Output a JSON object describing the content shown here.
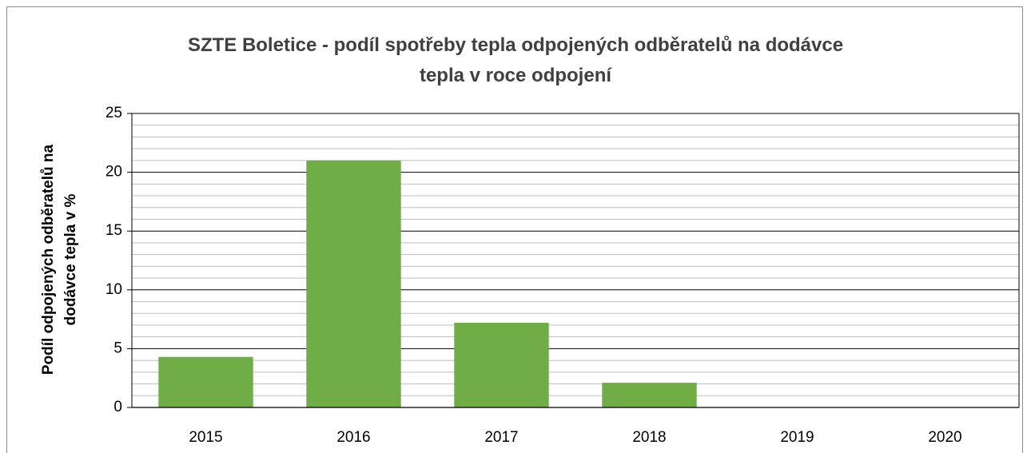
{
  "chart_data": {
    "type": "bar",
    "title": "SZTE Boletice - podíl spotřeby tepla odpojených odběratelů na dodávce\ntepla v roce odpojení",
    "y_label": "Podíl odpojených odběratelů na\ndodávce tepla v %",
    "categories": [
      "2015",
      "2016",
      "2017",
      "2018",
      "2019",
      "2020"
    ],
    "values": [
      4.3,
      21,
      7.2,
      2.1,
      0,
      0
    ],
    "color": "#70ad47",
    "ylim": [
      0,
      25
    ],
    "yticks": [
      0,
      5,
      10,
      15,
      20,
      25
    ],
    "yminorticks": [
      1,
      2,
      3,
      4,
      6,
      7,
      8,
      9,
      11,
      12,
      13,
      14,
      16,
      17,
      18,
      19,
      21,
      22,
      23,
      24
    ],
    "grid": true
  }
}
